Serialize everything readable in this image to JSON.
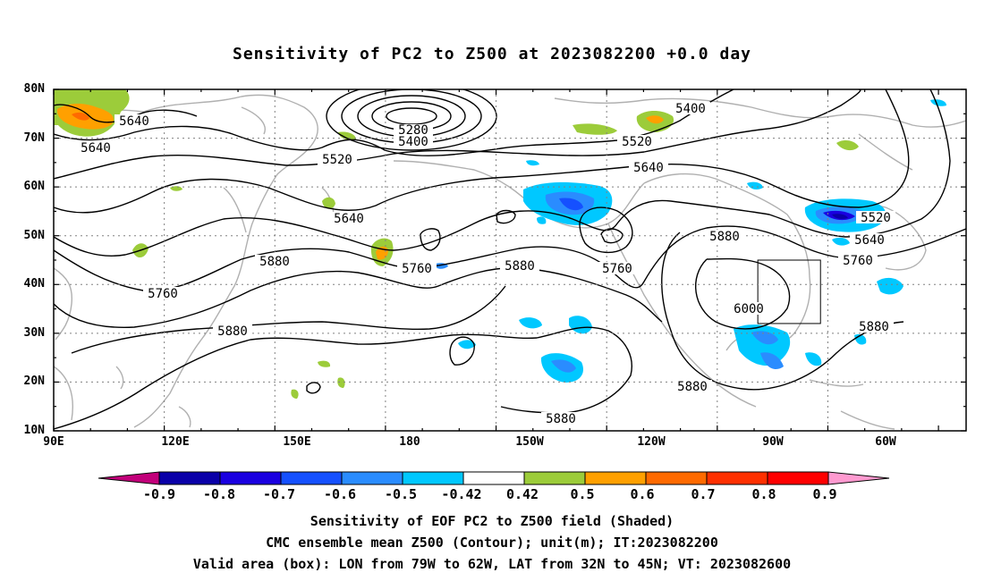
{
  "title": "Sensitivity of PC2 to Z500 at 2023082200 +0.0 day",
  "lat_labels": [
    "80N",
    "70N",
    "60N",
    "50N",
    "40N",
    "30N",
    "20N",
    "10N"
  ],
  "lon_labels": [
    "90E",
    "120E",
    "150E",
    "180",
    "150W",
    "120W",
    "90W",
    "60W"
  ],
  "contour_labels": [
    "5640",
    "5640",
    "5520",
    "5400",
    "5280",
    "5520",
    "5400",
    "5640",
    "5640",
    "5520",
    "5640",
    "5760",
    "5880",
    "5760",
    "5760",
    "5880",
    "5880",
    "5880",
    "6000",
    "5760",
    "5880",
    "5880",
    "5880"
  ],
  "colorbar": {
    "labels": [
      "-0.9",
      "-0.8",
      "-0.7",
      "-0.6",
      "-0.5",
      "-0.42",
      "0.42",
      "0.5",
      "0.6",
      "0.7",
      "0.8",
      "0.9"
    ],
    "colors": [
      "#c2007a",
      "#0a00a8",
      "#1a00e0",
      "#1550ff",
      "#2a8cff",
      "#00c8ff",
      "#ffffff",
      "#9ccc3a",
      "#ffa000",
      "#ff6a00",
      "#ff3000",
      "#ff0000",
      "#ff9ad0"
    ]
  },
  "captions": [
    "Sensitivity of EOF PC2 to Z500 field (Shaded)",
    "CMC ensemble mean Z500 (Contour); unit(m); IT:2023082200",
    "Valid area (box): LON from 79W to 62W, LAT from 32N to 45N; VT: 2023082600"
  ],
  "valid_box": {
    "lon": [
      -79,
      -62
    ],
    "lat": [
      32,
      45
    ]
  }
}
